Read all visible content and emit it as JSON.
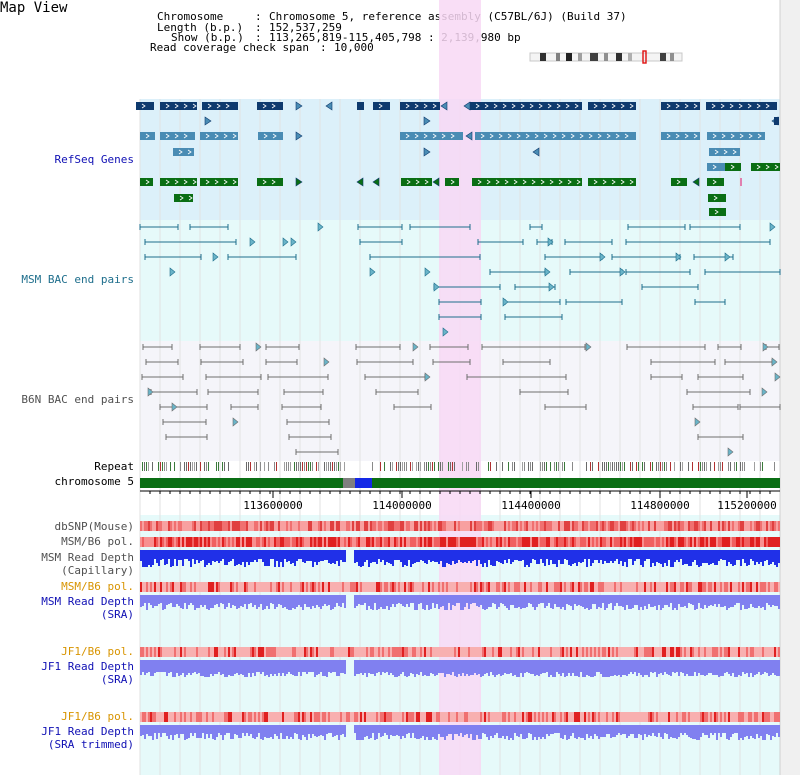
{
  "title": "Map View",
  "header": {
    "chromosome_label": "Chromosome",
    "chromosome_value": "Chromosome 5, reference assembly (C57BL/6J) (Build 37)",
    "length_label": "Length (b.p.)",
    "length_value": "152,537,259",
    "show_label": "Show (b.p.)",
    "show_value": "113,265,819-115,405,798 : 2,139,980 bp",
    "span_label": "Read coverage check span",
    "span_value": "10,000",
    "sep": ":"
  },
  "tracks": {
    "refseq": "RefSeq Genes",
    "msm_bac": "MSM BAC end pairs",
    "b6n_bac": "B6N BAC end pairs",
    "repeat": "Repeat",
    "chromosome": "chromosome 5",
    "dbsnp": "dbSNP(Mouse)",
    "msm_b6_pol_1": "MSM/B6 pol.",
    "msm_read_depth_cap_1": "MSM Read Depth",
    "msm_read_depth_cap_2": "(Capillary)",
    "msm_b6_pol_2": "MSM/B6 pol.",
    "msm_read_depth_sra_1": "MSM Read Depth",
    "msm_read_depth_sra_2": "(SRA)",
    "jf1_b6_pol_1": "JF1/B6 pol.",
    "jf1_read_depth_sra_1": "JF1 Read Depth",
    "jf1_read_depth_sra_2": "(SRA)",
    "jf1_b6_pol_2": "JF1/B6 pol.",
    "jf1_read_depth_trim_1": "JF1 Read Depth",
    "jf1_read_depth_trim_2": "(SRA trimmed)"
  },
  "axis_ticks": [
    "113600000",
    "114000000",
    "114400000",
    "114800000",
    "115200000"
  ],
  "colors": {
    "refseq_bg": "#dcf0fa",
    "msm_bg": "#e6fafa",
    "b6n_bg": "#f5f5fa",
    "highlight": "#f8d8f4",
    "gene_dark": "#0e3a6e",
    "gene_mid": "#4a8cb4",
    "gene_green": "#0a6e14",
    "msm_pair": "#1e6e8c",
    "b6n_pair": "#6e6e6e",
    "label_blue": "#1010b4",
    "label_orange": "#d89400",
    "label_gray": "#505050"
  }
}
